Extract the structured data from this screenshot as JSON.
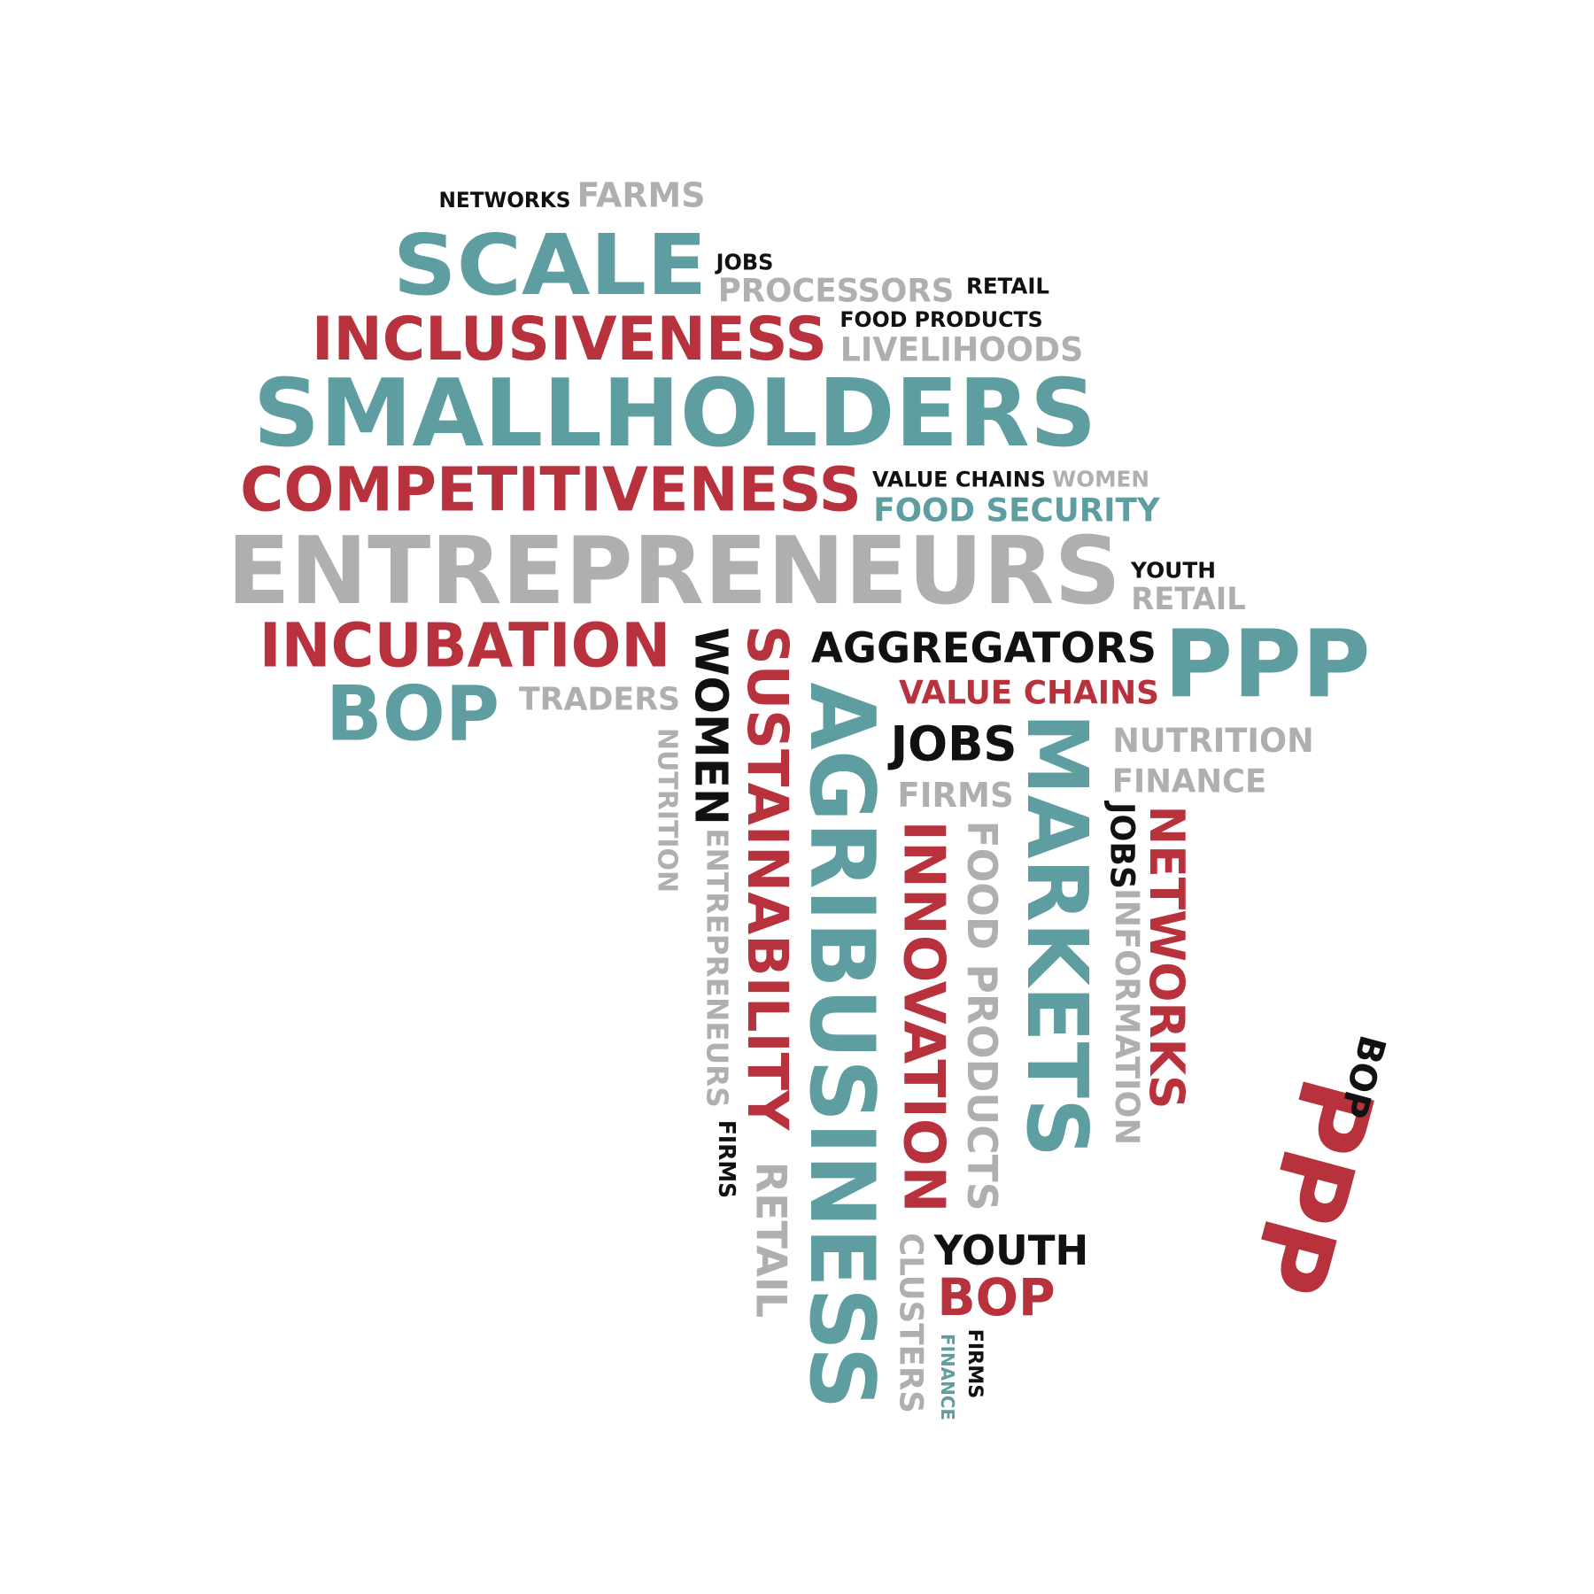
{
  "colors": {
    "teal": "#5f9ea0",
    "red": "#b8323d",
    "gray": "#b1afae",
    "black": "#111111"
  },
  "words": [
    {
      "id": "networks-1",
      "text": "NETWORKS",
      "color": "black"
    },
    {
      "id": "farms-1",
      "text": "FARMS",
      "color": "gray"
    },
    {
      "id": "scale",
      "text": "SCALE",
      "color": "teal"
    },
    {
      "id": "jobs-1",
      "text": "JOBS",
      "color": "black"
    },
    {
      "id": "processors",
      "text": "PROCESSORS",
      "color": "gray"
    },
    {
      "id": "retail-1",
      "text": "RETAIL",
      "color": "black"
    },
    {
      "id": "food-products-1",
      "text": "FOOD PRODUCTS",
      "color": "black"
    },
    {
      "id": "inclusiveness",
      "text": "INCLUSIVENESS",
      "color": "red"
    },
    {
      "id": "livelihoods",
      "text": "LIVELIHOODS",
      "color": "gray"
    },
    {
      "id": "smallholders",
      "text": "SMALLHOLDERS",
      "color": "teal"
    },
    {
      "id": "competitiveness",
      "text": "COMPETITIVENESS",
      "color": "red"
    },
    {
      "id": "value-chains-1",
      "text": "VALUE CHAINS",
      "color": "black"
    },
    {
      "id": "women-1",
      "text": "WOMEN",
      "color": "gray"
    },
    {
      "id": "food-security",
      "text": "FOOD SECURITY",
      "color": "teal"
    },
    {
      "id": "entrepreneurs-1",
      "text": "ENTREPRENEURS",
      "color": "gray"
    },
    {
      "id": "youth-1",
      "text": "YOUTH",
      "color": "black"
    },
    {
      "id": "retail-2",
      "text": "RETAIL",
      "color": "gray"
    },
    {
      "id": "incubation",
      "text": "INCUBATION",
      "color": "red"
    },
    {
      "id": "aggregators",
      "text": "AGGREGATORS",
      "color": "black"
    },
    {
      "id": "ppp-1",
      "text": "PPP",
      "color": "teal"
    },
    {
      "id": "bop-1",
      "text": "BOP",
      "color": "teal"
    },
    {
      "id": "traders",
      "text": "TRADERS",
      "color": "gray"
    },
    {
      "id": "value-chains-2",
      "text": "VALUE CHAINS",
      "color": "red"
    },
    {
      "id": "nutrition-1",
      "text": "NUTRITION",
      "color": "gray"
    },
    {
      "id": "jobs-2",
      "text": "JOBS",
      "color": "black"
    },
    {
      "id": "finance-1",
      "text": "FINANCE",
      "color": "gray"
    },
    {
      "id": "firms-1",
      "text": "FIRMS",
      "color": "gray"
    },
    {
      "id": "nutrition-2",
      "text": "NUTRITION",
      "color": "gray"
    },
    {
      "id": "women-2",
      "text": "WOMEN",
      "color": "black"
    },
    {
      "id": "entrepreneurs-2",
      "text": "ENTREPRENEURS",
      "color": "gray"
    },
    {
      "id": "firms-2",
      "text": "FIRMS",
      "color": "black"
    },
    {
      "id": "sustainability",
      "text": "SUSTAINABILITY",
      "color": "red"
    },
    {
      "id": "retail-3",
      "text": "RETAIL",
      "color": "gray"
    },
    {
      "id": "agribusiness",
      "text": "AGRIBUSINESS",
      "color": "teal"
    },
    {
      "id": "innovation",
      "text": "INNOVATION",
      "color": "red"
    },
    {
      "id": "food-products-2",
      "text": "FOOD PRODUCTS",
      "color": "gray"
    },
    {
      "id": "markets",
      "text": "MARKETS",
      "color": "teal"
    },
    {
      "id": "jobs-3",
      "text": "JOBS",
      "color": "black"
    },
    {
      "id": "information",
      "text": "INFORMATION",
      "color": "gray"
    },
    {
      "id": "networks-2",
      "text": "NETWORKS",
      "color": "red"
    },
    {
      "id": "clusters",
      "text": "CLUSTERS",
      "color": "gray"
    },
    {
      "id": "youth-2",
      "text": "YOUTH",
      "color": "black"
    },
    {
      "id": "bop-2",
      "text": "BOP",
      "color": "red"
    },
    {
      "id": "finance-2",
      "text": "FINANCE",
      "color": "teal"
    },
    {
      "id": "firms-3",
      "text": "FIRMS",
      "color": "black"
    },
    {
      "id": "ppp-2",
      "text": "PPP",
      "color": "red"
    },
    {
      "id": "bop-3",
      "text": "BOP",
      "color": "black"
    }
  ]
}
